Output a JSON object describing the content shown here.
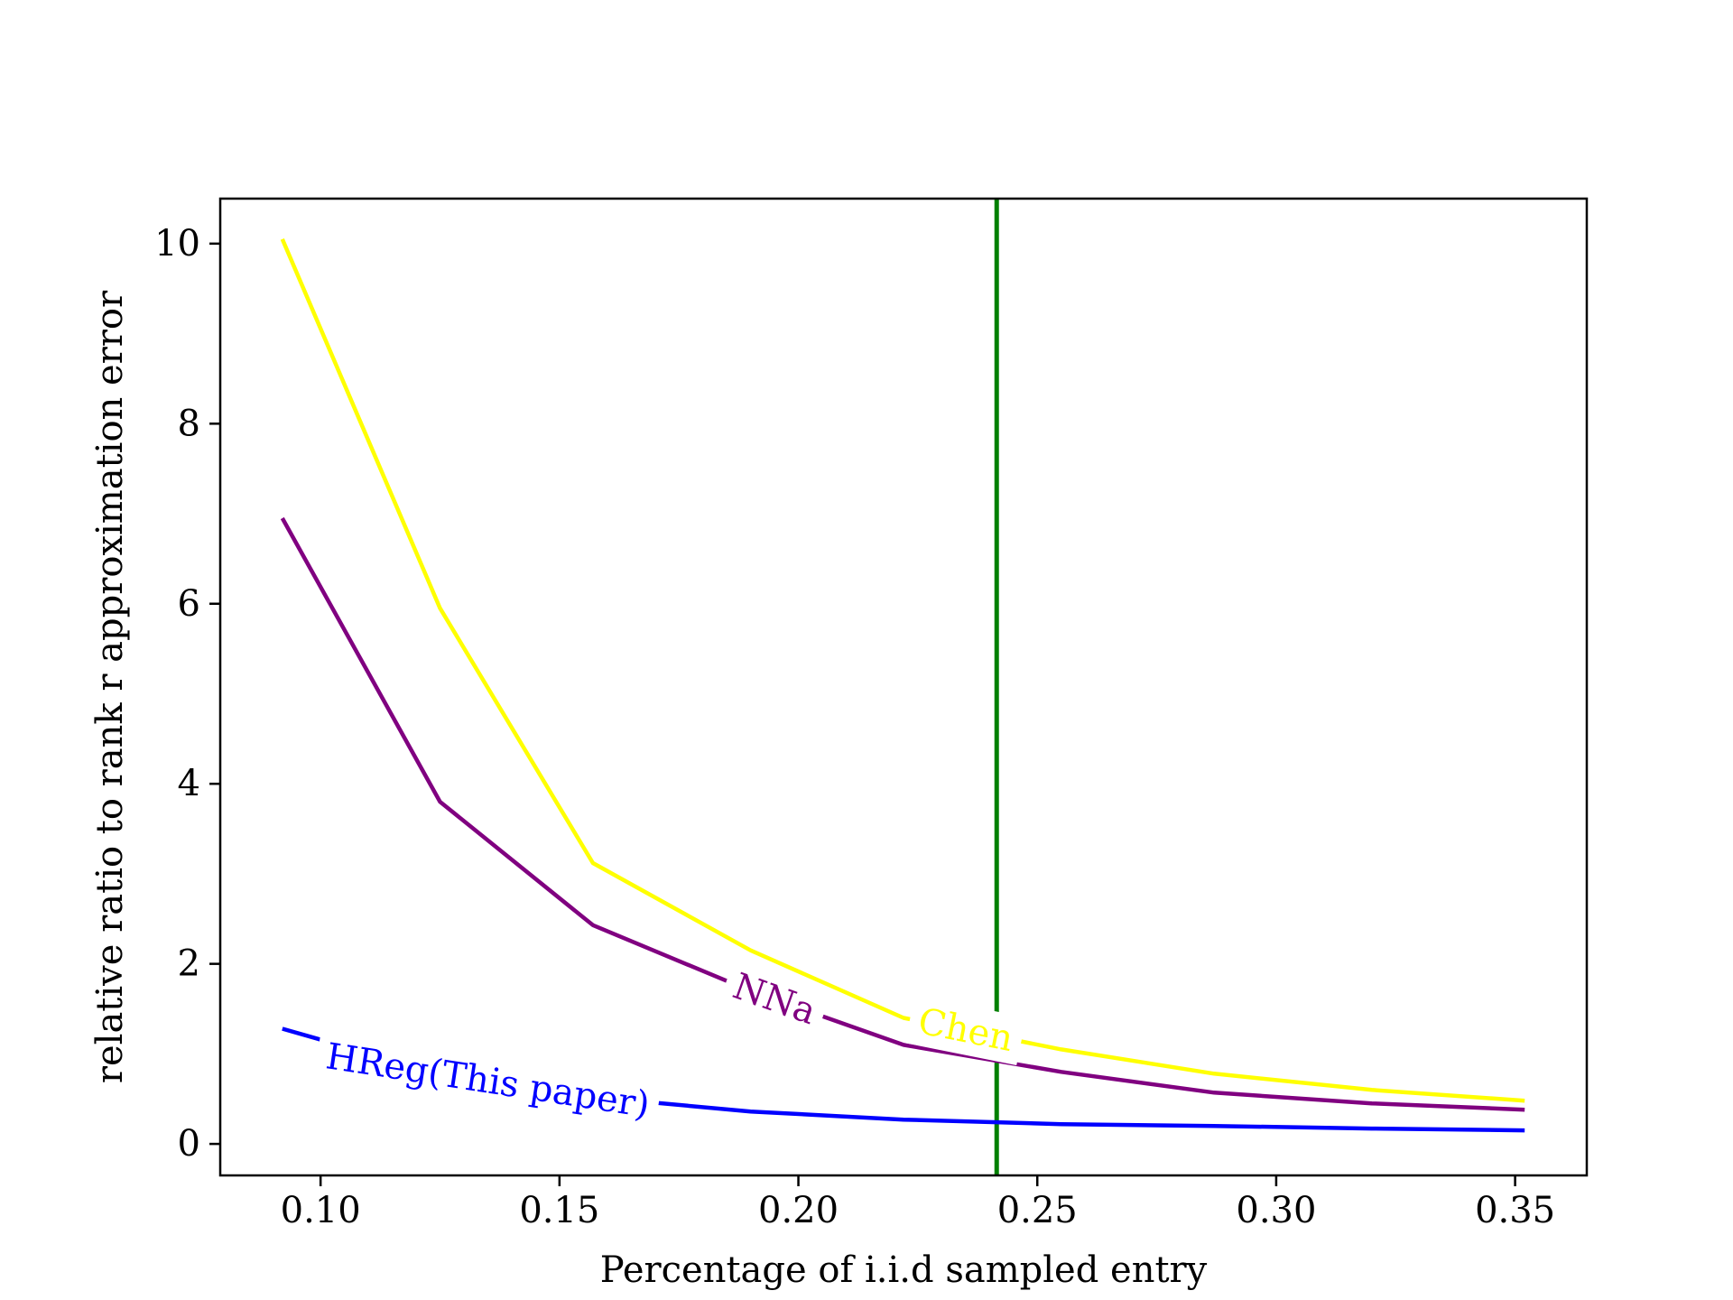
{
  "chart_data": {
    "type": "line",
    "title": "",
    "xlabel": "Percentage of i.i.d sampled entry",
    "ylabel": "relative ratio to rank r approximation error",
    "xlim": [
      0.079,
      0.365
    ],
    "ylim": [
      -0.35,
      10.5
    ],
    "xticks": [
      0.1,
      0.15,
      0.2,
      0.25,
      0.3,
      0.35
    ],
    "xtick_labels": [
      "0.10",
      "0.15",
      "0.20",
      "0.25",
      "0.30",
      "0.35"
    ],
    "yticks": [
      0,
      2,
      4,
      6,
      8,
      10
    ],
    "ytick_labels": [
      "0",
      "2",
      "4",
      "6",
      "8",
      "10"
    ],
    "grid": false,
    "legend": "none (inline labels on lines)",
    "series": [
      {
        "name": "Chen",
        "color": "#ffff00",
        "x": [
          0.092,
          0.125,
          0.157,
          0.19,
          0.222,
          0.255,
          0.287,
          0.32,
          0.352
        ],
        "y": [
          10.05,
          5.95,
          3.12,
          2.15,
          1.4,
          1.05,
          0.78,
          0.6,
          0.48
        ],
        "label_x": 0.235
      },
      {
        "name": "NNa",
        "color": "#800080",
        "x": [
          0.092,
          0.125,
          0.157,
          0.19,
          0.222,
          0.255,
          0.287,
          0.32,
          0.352
        ],
        "y": [
          6.95,
          3.8,
          2.43,
          1.7,
          1.1,
          0.8,
          0.57,
          0.45,
          0.38
        ],
        "label_x": 0.195
      },
      {
        "name": "HReg(This paper)",
        "color": "#0000ff",
        "x": [
          0.092,
          0.125,
          0.157,
          0.19,
          0.222,
          0.255,
          0.287,
          0.32,
          0.352
        ],
        "y": [
          1.28,
          0.78,
          0.52,
          0.36,
          0.27,
          0.22,
          0.2,
          0.17,
          0.15
        ],
        "label_x": 0.135
      }
    ],
    "vlines": [
      {
        "x": 0.2415,
        "color": "#008000"
      }
    ]
  }
}
